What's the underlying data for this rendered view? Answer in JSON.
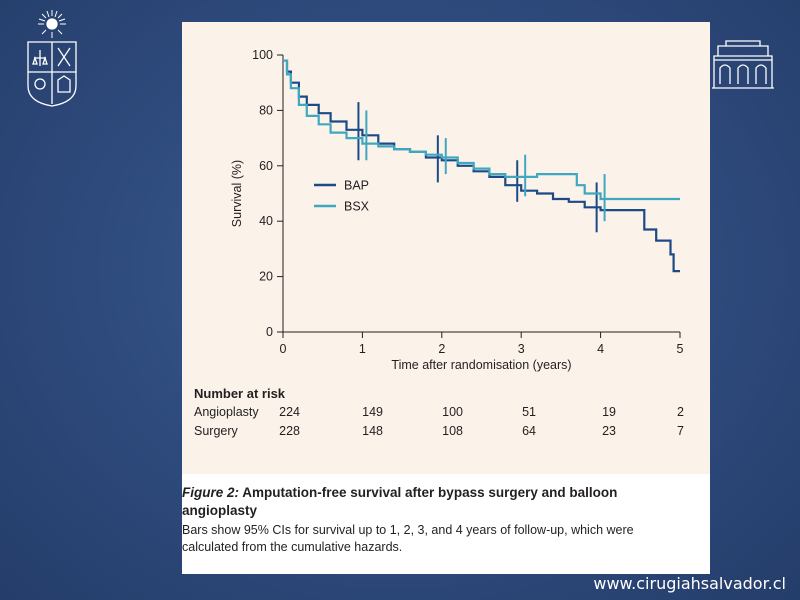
{
  "chart_data": {
    "type": "line",
    "title": "",
    "xlabel": "Time after randomisation (years)",
    "ylabel": "Survival (%)",
    "xlim": [
      0,
      5
    ],
    "ylim": [
      0,
      100
    ],
    "xticks": [
      0,
      1,
      2,
      3,
      4,
      5
    ],
    "yticks": [
      0,
      20,
      40,
      60,
      80,
      100
    ],
    "grid": false,
    "legend_position": "middle-left",
    "series": [
      {
        "name": "BAP",
        "color": "#1c4a86",
        "x": [
          0,
          0.05,
          0.1,
          0.2,
          0.3,
          0.45,
          0.6,
          0.8,
          1.0,
          1.2,
          1.4,
          1.6,
          1.8,
          2.0,
          2.2,
          2.4,
          2.6,
          2.8,
          3.0,
          3.2,
          3.4,
          3.6,
          3.8,
          4.0,
          4.2,
          4.45,
          4.55,
          4.7,
          4.8,
          4.88,
          4.92,
          5.0
        ],
        "y": [
          98,
          94,
          90,
          85,
          82,
          79,
          76,
          73,
          71,
          68,
          66,
          65,
          63,
          62,
          60,
          58,
          56,
          53,
          51,
          50,
          48,
          47,
          45,
          44,
          44,
          44,
          37,
          33,
          33,
          28,
          22,
          22
        ],
        "ci_bars": [
          {
            "x": 0.95,
            "low": 62,
            "high": 83
          },
          {
            "x": 1.95,
            "low": 54,
            "high": 71
          },
          {
            "x": 2.95,
            "low": 47,
            "high": 62
          },
          {
            "x": 3.95,
            "low": 36,
            "high": 54
          }
        ]
      },
      {
        "name": "BSX",
        "color": "#3fa7c0",
        "x": [
          0,
          0.05,
          0.1,
          0.2,
          0.3,
          0.45,
          0.6,
          0.8,
          1.0,
          1.2,
          1.4,
          1.6,
          1.8,
          2.0,
          2.2,
          2.4,
          2.6,
          2.8,
          3.0,
          3.2,
          3.4,
          3.6,
          3.7,
          3.8,
          4.0,
          4.2,
          4.5,
          5.0
        ],
        "y": [
          98,
          93,
          88,
          82,
          78,
          75,
          72,
          70,
          68,
          67,
          66,
          65,
          64,
          63,
          61,
          59,
          57,
          56,
          56,
          57,
          57,
          57,
          53,
          50,
          48,
          48,
          48,
          48
        ],
        "ci_bars": [
          {
            "x": 1.05,
            "low": 62,
            "high": 80
          },
          {
            "x": 2.05,
            "low": 57,
            "high": 70
          },
          {
            "x": 3.05,
            "low": 49,
            "high": 64
          },
          {
            "x": 4.05,
            "low": 40,
            "high": 57
          }
        ]
      }
    ]
  },
  "risk_table": {
    "title": "Number at risk",
    "rows": [
      {
        "label": "Angioplasty",
        "values": [
          "224",
          "149",
          "100",
          "51",
          "19",
          "2"
        ]
      },
      {
        "label": "Surgery",
        "values": [
          "228",
          "148",
          "108",
          "64",
          "23",
          "7"
        ]
      }
    ]
  },
  "caption": {
    "figure_label": "Figure 2:",
    "title": "Amputation-free survival after bypass surgery and balloon angioplasty",
    "body": "Bars show 95% CIs for survival up to 1, 2, 3, and 4 years of follow-up, which were calculated from the cumulative hazards."
  },
  "footer": {
    "website": "www.cirugiahsalvador.cl"
  },
  "logos": {
    "left": "university-crest-icon",
    "right": "hospital-building-icon"
  }
}
